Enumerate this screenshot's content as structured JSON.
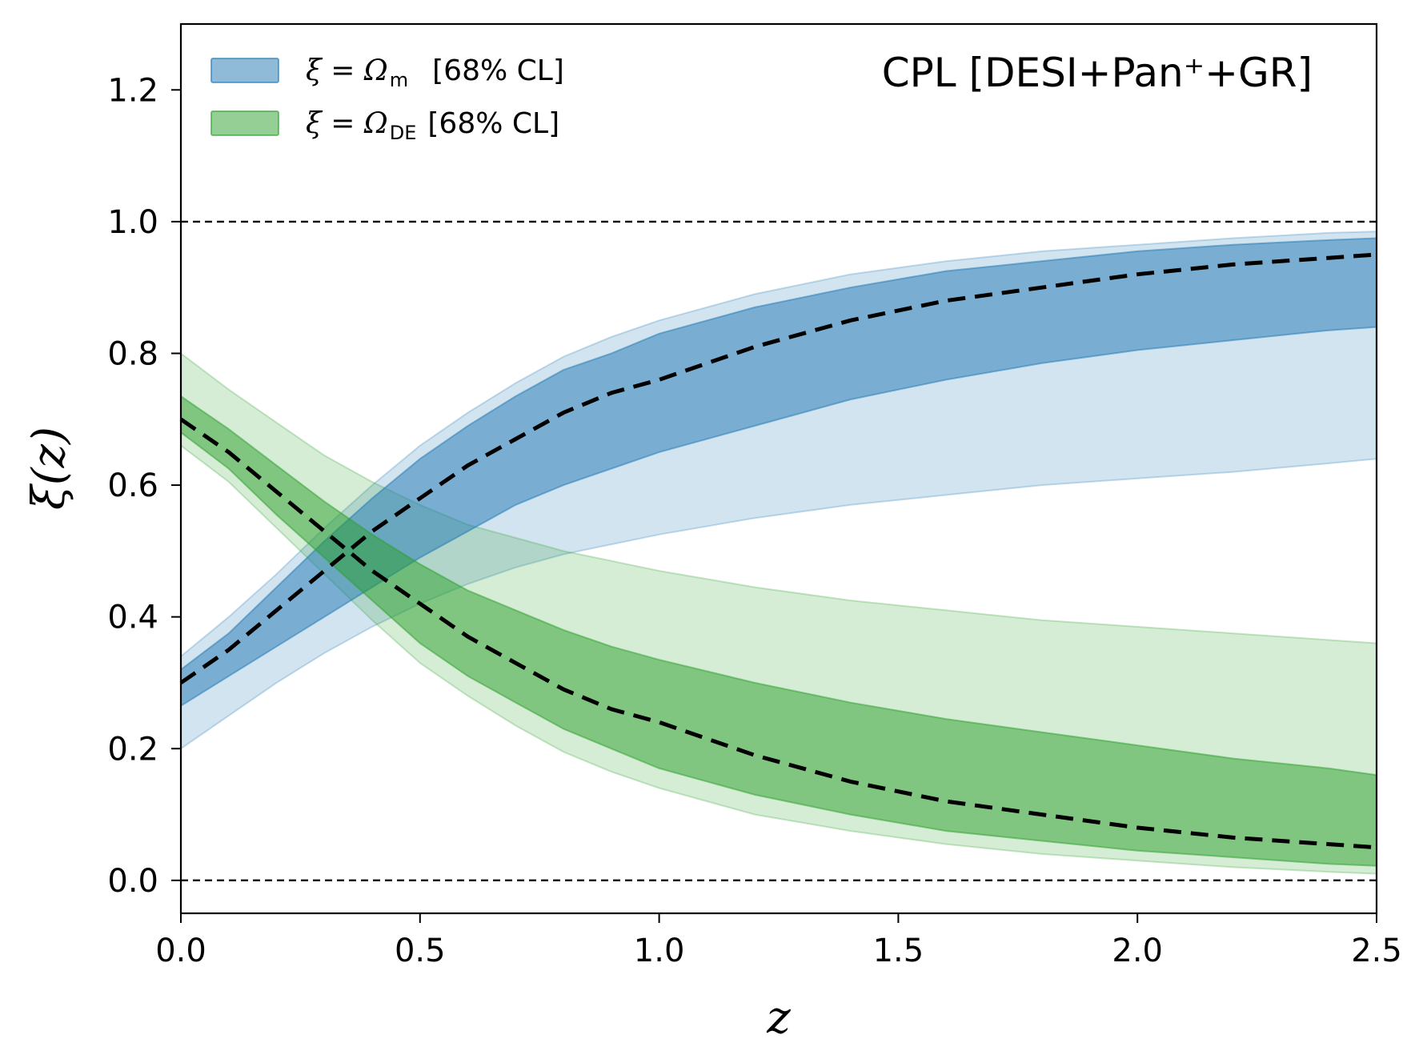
{
  "chart_data": {
    "type": "area",
    "title": "CPL [DESI+Pan⁺+GR]",
    "xlabel": "z",
    "ylabel": "ξ(z)",
    "xlim": [
      0.0,
      2.5
    ],
    "ylim": [
      -0.05,
      1.3
    ],
    "xticks": [
      "0.0",
      "0.5",
      "1.0",
      "1.5",
      "2.0",
      "2.5"
    ],
    "yticks": [
      "0.0",
      "0.2",
      "0.4",
      "0.6",
      "0.8",
      "1.0",
      "1.2"
    ],
    "reference_lines": [
      0.0,
      1.0
    ],
    "legend_position": "top-left",
    "x": [
      0.0,
      0.1,
      0.2,
      0.3,
      0.4,
      0.5,
      0.6,
      0.7,
      0.8,
      0.9,
      1.0,
      1.2,
      1.4,
      1.6,
      1.8,
      2.0,
      2.2,
      2.4,
      2.5
    ],
    "series": [
      {
        "name": "Ωm",
        "legend_math": "ξ = Ω",
        "legend_sub": "m",
        "legend_suffix": "[68% CL]",
        "color": "#1f77b4",
        "median": [
          0.3,
          0.35,
          0.41,
          0.47,
          0.53,
          0.58,
          0.63,
          0.67,
          0.71,
          0.74,
          0.76,
          0.81,
          0.85,
          0.88,
          0.9,
          0.92,
          0.935,
          0.945,
          0.95
        ],
        "dark_lo": [
          0.265,
          0.31,
          0.355,
          0.4,
          0.445,
          0.49,
          0.53,
          0.57,
          0.6,
          0.625,
          0.65,
          0.69,
          0.73,
          0.76,
          0.785,
          0.805,
          0.82,
          0.835,
          0.84
        ],
        "dark_hi": [
          0.32,
          0.375,
          0.445,
          0.515,
          0.58,
          0.64,
          0.69,
          0.735,
          0.775,
          0.8,
          0.83,
          0.87,
          0.9,
          0.925,
          0.94,
          0.955,
          0.965,
          0.972,
          0.975
        ],
        "light_lo": [
          0.2,
          0.25,
          0.3,
          0.345,
          0.385,
          0.42,
          0.45,
          0.475,
          0.495,
          0.51,
          0.525,
          0.55,
          0.57,
          0.585,
          0.6,
          0.61,
          0.62,
          0.633,
          0.64
        ],
        "light_hi": [
          0.34,
          0.4,
          0.465,
          0.535,
          0.6,
          0.66,
          0.71,
          0.755,
          0.795,
          0.825,
          0.85,
          0.89,
          0.92,
          0.94,
          0.955,
          0.965,
          0.975,
          0.983,
          0.985
        ]
      },
      {
        "name": "ΩDE",
        "legend_math": "ξ = Ω",
        "legend_sub": "DE",
        "legend_suffix": "[68% CL]",
        "color": "#2ca02c",
        "median": [
          0.7,
          0.65,
          0.59,
          0.53,
          0.47,
          0.42,
          0.37,
          0.33,
          0.29,
          0.26,
          0.24,
          0.19,
          0.15,
          0.12,
          0.1,
          0.08,
          0.065,
          0.055,
          0.05
        ],
        "dark_lo": [
          0.68,
          0.625,
          0.555,
          0.49,
          0.425,
          0.36,
          0.31,
          0.27,
          0.23,
          0.2,
          0.17,
          0.13,
          0.1,
          0.075,
          0.06,
          0.045,
          0.035,
          0.025,
          0.022
        ],
        "dark_hi": [
          0.735,
          0.685,
          0.63,
          0.575,
          0.525,
          0.48,
          0.44,
          0.41,
          0.38,
          0.355,
          0.335,
          0.3,
          0.27,
          0.245,
          0.225,
          0.205,
          0.185,
          0.17,
          0.16
        ],
        "light_lo": [
          0.66,
          0.605,
          0.535,
          0.465,
          0.395,
          0.33,
          0.28,
          0.235,
          0.195,
          0.165,
          0.14,
          0.1,
          0.075,
          0.055,
          0.04,
          0.03,
          0.02,
          0.013,
          0.01
        ],
        "light_hi": [
          0.8,
          0.745,
          0.695,
          0.645,
          0.605,
          0.57,
          0.54,
          0.52,
          0.5,
          0.485,
          0.47,
          0.445,
          0.425,
          0.41,
          0.395,
          0.385,
          0.375,
          0.365,
          0.36
        ]
      }
    ]
  }
}
